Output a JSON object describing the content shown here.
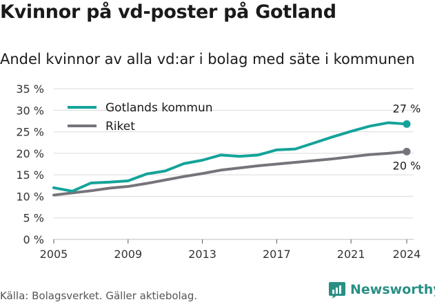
{
  "title": "Kvinnor på vd-poster på Gotland",
  "subtitle": "Andel kvinnor av alla vd:ar i bolag med säte i kommunen",
  "source": "Källa: Bolagsverket. Gäller aktiebolag.",
  "brand": "Newsworthy",
  "colors": {
    "gotland": "#14a39a",
    "riket": "#77737b",
    "grid": "#d9d9d9",
    "brand": "#2a8f84"
  },
  "chart_data": {
    "type": "line",
    "x": [
      2005,
      2006,
      2007,
      2008,
      2009,
      2010,
      2011,
      2012,
      2013,
      2014,
      2015,
      2016,
      2017,
      2018,
      2019,
      2020,
      2021,
      2022,
      2023,
      2024
    ],
    "series": [
      {
        "name": "Gotlands kommun",
        "color": "#14a39a",
        "values": [
          12.0,
          11.2,
          13.1,
          13.3,
          13.6,
          15.2,
          15.9,
          17.6,
          18.4,
          19.6,
          19.3,
          19.6,
          20.8,
          21.0,
          22.4,
          23.8,
          25.1,
          26.3,
          27.1,
          26.8
        ],
        "end_label": "27 %"
      },
      {
        "name": "Riket",
        "color": "#77737b",
        "values": [
          10.3,
          10.8,
          11.3,
          11.9,
          12.3,
          13.0,
          13.8,
          14.6,
          15.3,
          16.1,
          16.6,
          17.1,
          17.5,
          17.9,
          18.3,
          18.7,
          19.2,
          19.7,
          20.0,
          20.4
        ],
        "end_label": "20 %"
      }
    ],
    "x_ticks": [
      "2005",
      "2009",
      "2013",
      "2017",
      "2021",
      "2024"
    ],
    "y_ticks": [
      "0 %",
      "5 %",
      "10 %",
      "15 %",
      "20 %",
      "25 %",
      "30 %",
      "35 %"
    ],
    "ylim": [
      0,
      35
    ],
    "xlim": [
      2005,
      2024
    ],
    "xlabel": "",
    "ylabel": "",
    "legend": "top-left"
  }
}
